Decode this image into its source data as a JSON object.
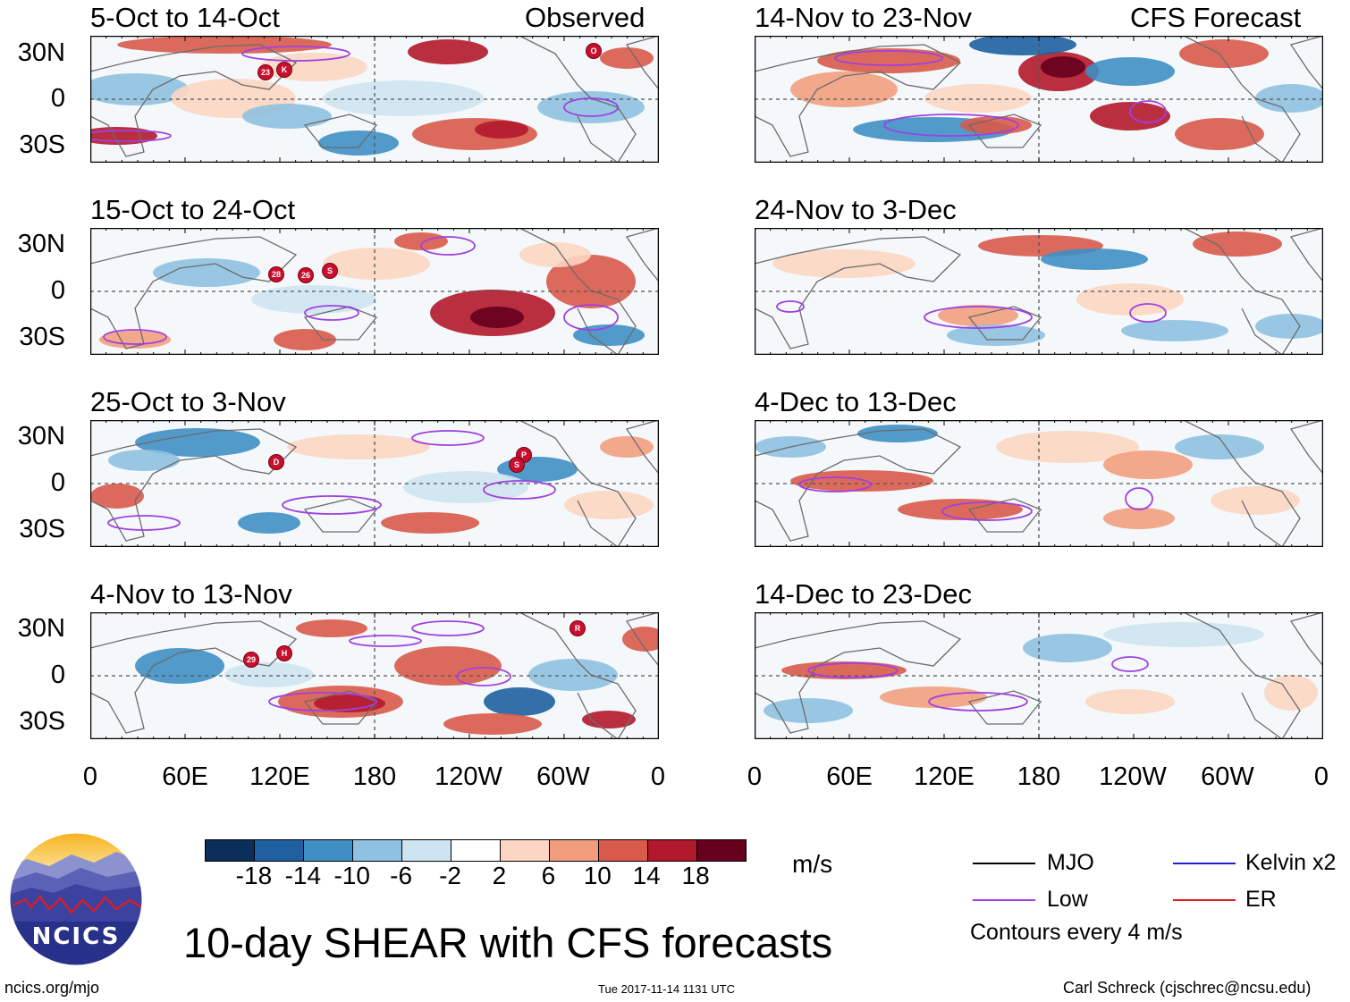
{
  "header": {
    "left_label": "Observed",
    "right_label": "CFS Forecast"
  },
  "observed_panels": [
    {
      "title": "5-Oct to 14-Oct",
      "storms": [
        "23",
        "K",
        "O"
      ]
    },
    {
      "title": "15-Oct to 24-Oct",
      "storms": [
        "28",
        "26",
        "S"
      ]
    },
    {
      "title": "25-Oct to 3-Nov",
      "storms": [
        "D",
        "P",
        "S"
      ]
    },
    {
      "title": "4-Nov to 13-Nov",
      "storms": [
        "29",
        "H",
        "R"
      ]
    }
  ],
  "forecast_panels": [
    {
      "title": "14-Nov to 23-Nov"
    },
    {
      "title": "24-Nov to 3-Dec"
    },
    {
      "title": "4-Dec to 13-Dec"
    },
    {
      "title": "14-Dec to 23-Dec"
    }
  ],
  "axes": {
    "y_labels": [
      "30N",
      "0",
      "30S"
    ],
    "x_labels": [
      "0",
      "60E",
      "120E",
      "180",
      "120W",
      "60W",
      "0"
    ]
  },
  "colorbar": {
    "ticks": [
      "-18",
      "-14",
      "-10",
      "-6",
      "-2",
      "2",
      "6",
      "10",
      "14",
      "18"
    ],
    "colors": [
      "#0b2f5a",
      "#1e60a0",
      "#3f8fc4",
      "#8fc1e0",
      "#cfe4f1",
      "#ffffff",
      "#fcd6c2",
      "#f29e7e",
      "#d95a4a",
      "#b2182b",
      "#67001f"
    ],
    "unit": "m/s"
  },
  "legend": {
    "items": [
      {
        "label": "MJO",
        "color": "#000000"
      },
      {
        "label": "Kelvin x2",
        "color": "#2222cc"
      },
      {
        "label": "Low",
        "color": "#a040e0"
      },
      {
        "label": "ER",
        "color": "#e02020"
      }
    ],
    "note": "Contours every 4 m/s"
  },
  "logo": {
    "text": "NCICS"
  },
  "title": "10-day SHEAR with CFS forecasts",
  "footer": {
    "url": "ncics.org/mjo",
    "timestamp": "Tue 2017-11-14 1131 UTC",
    "author": "Carl Schreck (cjschrec@ncsu.edu)"
  }
}
